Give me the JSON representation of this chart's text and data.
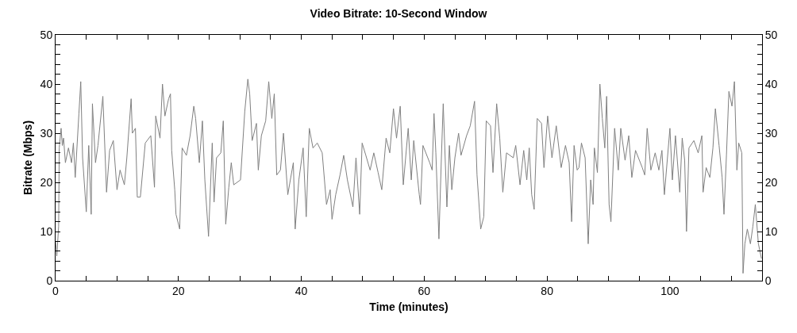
{
  "chart_data": {
    "type": "line",
    "title": "Video Bitrate: 10-Second Window",
    "xlabel": "Time (minutes)",
    "ylabel": "Bitrate (Mbps)",
    "series": [
      {
        "color": "#808080",
        "x": [
          0,
          0.2,
          0.5,
          0.6,
          0.9,
          1.1,
          1.3,
          1.6,
          2.1,
          2.6,
          2.9,
          3.2,
          3.8,
          4.1,
          4.4,
          5,
          5.4,
          5.8,
          6,
          6.5,
          6.9,
          7.7,
          8.3,
          8.8,
          9.4,
          10,
          10.5,
          11.2,
          11.6,
          12.3,
          12.5,
          13,
          13.3,
          13.8,
          14.6,
          15.5,
          16.1,
          16.3,
          17,
          17.4,
          17.8,
          18.4,
          18.7,
          18.9,
          19.4,
          19.6,
          20.2,
          20.6,
          21.3,
          21.9,
          22.5,
          22.8,
          23.4,
          23.9,
          24.3,
          24.9,
          25.5,
          25.8,
          26.2,
          26.9,
          27.3,
          27.7,
          28.2,
          28.6,
          29,
          30.1,
          30.8,
          31.3,
          31.6,
          32,
          32.7,
          33,
          33.5,
          34.2,
          34.7,
          35.2,
          35.6,
          36,
          36.6,
          37.1,
          37.8,
          38.7,
          39,
          39.6,
          40.3,
          40.8,
          41.3,
          41.9,
          42.6,
          43.4,
          44.1,
          44.7,
          45,
          45.6,
          46.3,
          46.9,
          47.5,
          48.4,
          48.9,
          49.5,
          49.9,
          50.5,
          51.2,
          51.8,
          52.5,
          53.1,
          53.8,
          54.4,
          55,
          55.5,
          56.1,
          56.6,
          57.4,
          57.9,
          58.3,
          59.2,
          59.4,
          59.8,
          60.9,
          61.3,
          61.6,
          61.9,
          62.4,
          62.8,
          63.1,
          63.7,
          64.1,
          64.5,
          65,
          65.6,
          66,
          66.9,
          67.5,
          68.2,
          68.6,
          69.2,
          69.7,
          70.1,
          70.8,
          71.2,
          71.8,
          72.3,
          72.8,
          73.4,
          74.5,
          74.9,
          75.6,
          76.2,
          76.7,
          77.1,
          77.5,
          77.9,
          78.4,
          79.1,
          79.5,
          80.1,
          80.8,
          81.5,
          82.3,
          83,
          83.6,
          84,
          84.4,
          84.9,
          85.2,
          85.6,
          86.2,
          86.7,
          87.1,
          87.5,
          87.7,
          88.2,
          88.6,
          89,
          89.4,
          89.7,
          90.1,
          90.4,
          91,
          91.6,
          92,
          92.7,
          93.3,
          93.8,
          94.4,
          95.5,
          95.9,
          96.3,
          96.9,
          97.6,
          98.2,
          98.7,
          99.1,
          100,
          100.4,
          100.9,
          101.6,
          102,
          102.4,
          102.7,
          103.1,
          103.9,
          104.6,
          105.2,
          105.4,
          105.9,
          106.5,
          107,
          107.4,
          108,
          108.5,
          108.8,
          109.2,
          109.6,
          110.1,
          110.5,
          110.9,
          111.2,
          111.7,
          111.9,
          112.2,
          112.6,
          113.1,
          113.5,
          113.9,
          114.4,
          114.9
        ],
        "values": [
          8,
          5,
          11,
          27,
          31,
          27.5,
          29,
          24,
          27,
          24,
          28,
          21,
          34,
          40.5,
          25,
          14,
          27.5,
          13.5,
          36,
          24,
          27.5,
          37.5,
          18,
          26.5,
          28.5,
          18.5,
          22.5,
          19.5,
          25,
          37,
          30,
          31,
          17,
          17,
          28,
          29.5,
          19,
          33.5,
          29,
          40,
          33.5,
          37,
          38,
          26.5,
          18.5,
          13.5,
          10.5,
          27,
          25.5,
          29.5,
          35.5,
          33,
          24,
          32.5,
          20.5,
          9,
          28,
          16,
          25,
          26,
          32.5,
          11.5,
          19,
          24,
          19.5,
          20.5,
          34.5,
          41,
          38,
          28.5,
          32,
          22.5,
          29.5,
          32.5,
          40.5,
          33,
          38,
          21.5,
          22.5,
          30,
          17.5,
          24,
          10.5,
          20.5,
          27,
          13,
          31,
          27,
          28,
          26,
          15.5,
          18.5,
          12.5,
          17.5,
          21.5,
          25.5,
          20.5,
          15,
          25,
          13.5,
          28,
          25.5,
          22.5,
          26,
          22,
          18.5,
          29,
          26,
          35,
          29,
          35.5,
          19.5,
          31,
          20.5,
          28.5,
          17.5,
          15.5,
          27.5,
          24,
          22.5,
          34,
          26,
          8.5,
          25,
          36,
          15,
          27.5,
          18.5,
          25,
          30,
          25.5,
          29.5,
          31.5,
          36.5,
          21.5,
          10.5,
          13,
          32.5,
          31.5,
          22,
          36,
          29,
          18,
          26,
          25,
          27.5,
          19.5,
          26.5,
          20.5,
          27,
          17.5,
          14.5,
          33,
          32,
          23,
          33.5,
          25,
          31.5,
          23,
          27.5,
          24,
          12,
          27.5,
          22.5,
          23,
          28,
          25,
          7.5,
          20.5,
          15.5,
          27,
          22,
          40,
          33,
          27,
          37.5,
          15.5,
          12,
          31,
          22.5,
          31,
          24.5,
          29.5,
          21,
          26.5,
          23,
          21.5,
          31,
          22.5,
          26,
          22.5,
          26.5,
          17.5,
          31,
          20.5,
          29.5,
          18,
          29,
          24.5,
          10,
          27,
          28.5,
          26,
          29.5,
          18,
          23,
          21,
          27,
          35,
          27.5,
          21,
          13.5,
          25.5,
          38.5,
          35.5,
          40.5,
          22.5,
          28,
          26,
          1.5,
          7.5,
          10.5,
          7.5,
          11,
          15.5,
          7.5,
          4.5
        ]
      }
    ],
    "xlim": [
      0,
      115
    ],
    "xticks": [
      0,
      {
        "value": 5,
        "label": null
      },
      {
        "value": 10,
        "label": null
      },
      {
        "value": 15,
        "label": null
      },
      20,
      {
        "value": 25,
        "label": null
      },
      {
        "value": 30,
        "label": null
      },
      {
        "value": 35,
        "label": null
      },
      40,
      {
        "value": 45,
        "label": null
      },
      {
        "value": 50,
        "label": null
      },
      {
        "value": 55,
        "label": null
      },
      60,
      {
        "value": 65,
        "label": null
      },
      {
        "value": 70,
        "label": null
      },
      {
        "value": 75,
        "label": null
      },
      80,
      {
        "value": 85,
        "label": null
      },
      {
        "value": 90,
        "label": null
      },
      {
        "value": 95,
        "label": null
      },
      100,
      {
        "value": 105,
        "label": null
      },
      {
        "value": 110,
        "label": null
      }
    ],
    "ylim": [
      0,
      50
    ],
    "yticks": [
      0,
      {
        "value": 2,
        "label": null
      },
      {
        "value": 4,
        "label": null
      },
      {
        "value": 6,
        "label": null
      },
      {
        "value": 8,
        "label": null
      },
      10,
      {
        "value": 12,
        "label": null
      },
      {
        "value": 14,
        "label": null
      },
      {
        "value": 16,
        "label": null
      },
      {
        "value": 18,
        "label": null
      },
      20,
      {
        "value": 22,
        "label": null
      },
      {
        "value": 24,
        "label": null
      },
      {
        "value": 26,
        "label": null
      },
      {
        "value": 28,
        "label": null
      },
      30,
      {
        "value": 32,
        "label": null
      },
      {
        "value": 34,
        "label": null
      },
      {
        "value": 36,
        "label": null
      },
      {
        "value": 38,
        "label": null
      },
      40,
      {
        "value": 42,
        "label": null
      },
      {
        "value": 44,
        "label": null
      },
      {
        "value": 46,
        "label": null
      },
      {
        "value": 48,
        "label": null
      },
      50
    ],
    "y2lim": [
      0,
      50
    ],
    "y2ticks": [
      0,
      {
        "value": 2,
        "label": null
      },
      {
        "value": 4,
        "label": null
      },
      {
        "value": 6,
        "label": null
      },
      {
        "value": 8,
        "label": null
      },
      10,
      {
        "value": 12,
        "label": null
      },
      {
        "value": 14,
        "label": null
      },
      {
        "value": 16,
        "label": null
      },
      {
        "value": 18,
        "label": null
      },
      20,
      {
        "value": 22,
        "label": null
      },
      {
        "value": 24,
        "label": null
      },
      {
        "value": 26,
        "label": null
      },
      {
        "value": 28,
        "label": null
      },
      30,
      {
        "value": 32,
        "label": null
      },
      {
        "value": 34,
        "label": null
      },
      {
        "value": 36,
        "label": null
      },
      {
        "value": 38,
        "label": null
      },
      40,
      {
        "value": 42,
        "label": null
      },
      {
        "value": 44,
        "label": null
      },
      {
        "value": 46,
        "label": null
      },
      {
        "value": 48,
        "label": null
      },
      50
    ],
    "marker": "none",
    "line_style": "solid"
  }
}
